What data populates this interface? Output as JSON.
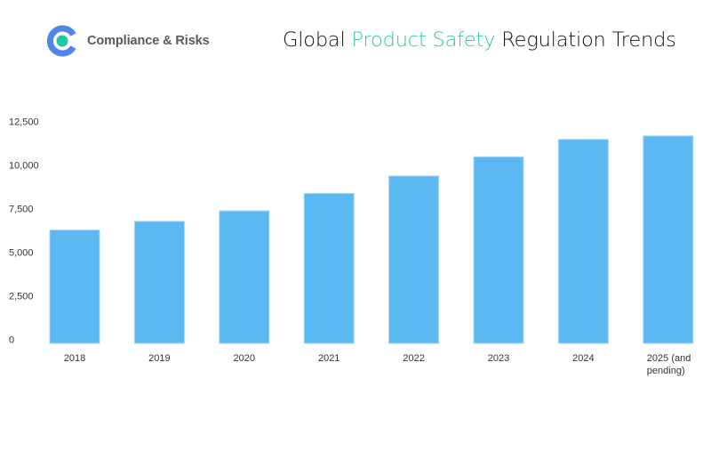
{
  "brand": {
    "name": "Compliance & Risks",
    "logo_icon": "c-ring-logo",
    "colors": {
      "ring": "#4f86e8",
      "dot": "#1fc9a8"
    }
  },
  "title": {
    "part1": "Global ",
    "highlight": "Product Safety",
    "part2": " Regulation Trends",
    "highlight_color": "#2ec7ad"
  },
  "chart_data": {
    "type": "bar",
    "title": "Global Product Safety Regulation Trends",
    "categories": [
      "2018",
      "2019",
      "2020",
      "2021",
      "2022",
      "2023",
      "2024",
      "2025 (and pending)"
    ],
    "category_lines": [
      [
        "2018"
      ],
      [
        "2019"
      ],
      [
        "2020"
      ],
      [
        "2021"
      ],
      [
        "2022"
      ],
      [
        "2023"
      ],
      [
        "2024"
      ],
      [
        "2025 (and",
        "pending)"
      ]
    ],
    "values": [
      6500,
      7000,
      7600,
      8600,
      9600,
      10700,
      11700,
      11900
    ],
    "ylim": [
      0,
      12500
    ],
    "yticks": [
      0,
      2500,
      5000,
      7500,
      10000,
      12500
    ],
    "ytick_labels": [
      "0",
      "2,500",
      "5,000",
      "7,500",
      "10,000",
      "12,500"
    ],
    "xlabel": "",
    "ylabel": "",
    "grid": false,
    "legend": "none",
    "bar_color": "#5bb8f0"
  }
}
